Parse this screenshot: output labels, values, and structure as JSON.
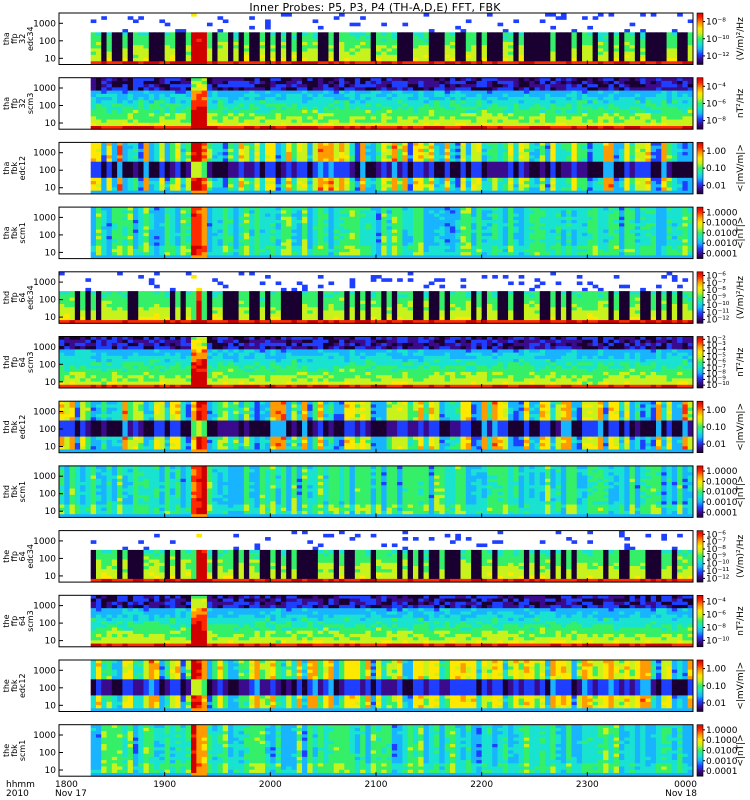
{
  "chart_data": {
    "type": "heatmap",
    "title": "Inner Probes: P5, P3, P4 (TH-A,D,E) FFT, FBK",
    "x": {
      "tick_labels": [
        "1800",
        "1900",
        "2000",
        "2100",
        "2200",
        "2300",
        "0000"
      ],
      "row_label_1": "hhmm",
      "row_label_2": "2010",
      "start_date_label": "Nov 17",
      "end_date_label": "Nov 18"
    },
    "panels": [
      {
        "probe": "tha",
        "instr": "ffp",
        "rate": "32",
        "channel": "edc34",
        "yticks": [
          "1000",
          "100",
          "10"
        ],
        "cb_ticks": [
          "10⁻⁸",
          "10⁻¹⁰",
          "10⁻¹²"
        ],
        "unit": "(V/m)²/Hz",
        "style": "fft_e"
      },
      {
        "probe": "tha",
        "instr": "ffp",
        "rate": "32",
        "channel": "scm3",
        "yticks": [
          "1000",
          "100",
          "10"
        ],
        "cb_ticks": [
          "10⁻⁴",
          "10⁻⁶",
          "10⁻⁸"
        ],
        "unit": "nT²/Hz",
        "style": "fft_b"
      },
      {
        "probe": "tha",
        "instr": "fbk",
        "rate": "",
        "channel": "edc12",
        "yticks": [
          "1000",
          "100",
          "10"
        ],
        "cb_ticks": [
          "1.00",
          "0.10",
          "0.01"
        ],
        "unit": "<|mV/m|>",
        "style": "fbk_e"
      },
      {
        "probe": "tha",
        "instr": "fbk",
        "rate": "",
        "channel": "scm1",
        "yticks": [
          "1000",
          "100",
          "10"
        ],
        "cb_ticks": [
          "1.0000",
          "0.1000",
          "0.0100",
          "0.0010",
          "0.0001"
        ],
        "unit": "<|nT|>",
        "style": "fbk_b"
      },
      {
        "probe": "thd",
        "instr": "ffp",
        "rate": "64",
        "channel": "edc34",
        "yticks": [
          "1000",
          "100",
          "10"
        ],
        "cb_ticks": [
          "10⁻⁶",
          "10⁻⁷",
          "10⁻⁸",
          "10⁻⁹",
          "10⁻¹⁰",
          "10⁻¹¹",
          "10⁻¹²"
        ],
        "unit": "(V/m)²/Hz",
        "style": "fft_e"
      },
      {
        "probe": "thd",
        "instr": "ffp",
        "rate": "64",
        "channel": "scm3",
        "yticks": [
          "1000",
          "100",
          "10"
        ],
        "cb_ticks": [
          "10⁻²",
          "10⁻³",
          "10⁻⁴",
          "10⁻⁵",
          "10⁻⁶",
          "10⁻⁷",
          "10⁻⁸",
          "10⁻⁹",
          "10⁻¹⁰"
        ],
        "unit": "nT²/Hz",
        "style": "fft_b"
      },
      {
        "probe": "thd",
        "instr": "fbk",
        "rate": "",
        "channel": "edc12",
        "yticks": [
          "1000",
          "100",
          "10"
        ],
        "cb_ticks": [
          "1.00",
          "0.10",
          "0.01"
        ],
        "unit": "<|mV/m|>",
        "style": "fbk_e"
      },
      {
        "probe": "thd",
        "instr": "fbk",
        "rate": "",
        "channel": "scm1",
        "yticks": [
          "1000",
          "100",
          "10"
        ],
        "cb_ticks": [
          "1.0000",
          "0.1000",
          "0.0100",
          "0.0010",
          "0.0001"
        ],
        "unit": "<|nT|>",
        "style": "fbk_b"
      },
      {
        "probe": "the",
        "instr": "ffp",
        "rate": "64",
        "channel": "edc34",
        "yticks": [
          "1000",
          "100",
          "10"
        ],
        "cb_ticks": [
          "10⁻⁶",
          "10⁻⁷",
          "10⁻⁸",
          "10⁻⁹",
          "10⁻¹⁰",
          "10⁻¹¹",
          "10⁻¹²"
        ],
        "unit": "(V/m)²/Hz",
        "style": "fft_e"
      },
      {
        "probe": "the",
        "instr": "ffp",
        "rate": "64",
        "channel": "scm3",
        "yticks": [
          "1000",
          "100",
          "10"
        ],
        "cb_ticks": [
          "10⁻⁴",
          "10⁻⁶",
          "10⁻⁸",
          "10⁻¹⁰"
        ],
        "unit": "nT²/Hz",
        "style": "fft_b"
      },
      {
        "probe": "the",
        "instr": "fbk",
        "rate": "",
        "channel": "edc12",
        "yticks": [
          "1000",
          "100",
          "10"
        ],
        "cb_ticks": [
          "1.00",
          "0.10",
          "0.01"
        ],
        "unit": "<|mV/m|>",
        "style": "fbk_e"
      },
      {
        "probe": "the",
        "instr": "fbk",
        "rate": "",
        "channel": "scm1",
        "yticks": [
          "1000",
          "100",
          "10"
        ],
        "cb_ticks": [
          "1.0000",
          "0.1000",
          "0.0100",
          "0.0010",
          "0.0001"
        ],
        "unit": "<|nT|>",
        "style": "fbk_b"
      }
    ],
    "colorscale": [
      "#1a0030",
      "#3a0b8c",
      "#1f3fff",
      "#18b4ff",
      "#19e3d0",
      "#35ef68",
      "#c8f21c",
      "#ffe800",
      "#ff9a00",
      "#ff2a00",
      "#d10000"
    ]
  }
}
